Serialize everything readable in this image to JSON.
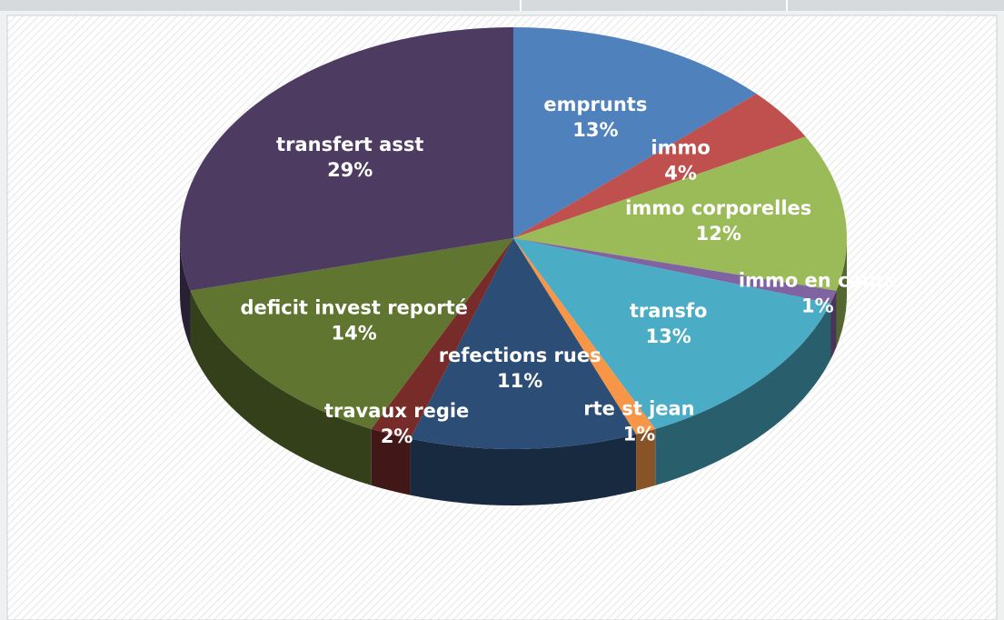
{
  "chart_data": {
    "type": "pie",
    "categories": [
      "emprunts",
      "immo",
      "immo corporelles",
      "immo en cours",
      "transfo",
      "rte st jean",
      "refections rues",
      "travaux regie",
      "deficit invest reporté",
      "transfert asst"
    ],
    "values": [
      13,
      4,
      12,
      1,
      13,
      1,
      11,
      2,
      14,
      29
    ],
    "value_labels": [
      "13%",
      "4%",
      "12%",
      "1%",
      "13%",
      "1%",
      "11%",
      "2%",
      "14%",
      "29%"
    ],
    "colors": [
      "#4f81bd",
      "#c0504d",
      "#9bbb59",
      "#8064a2",
      "#4bacc6",
      "#f79646",
      "#2c4d75",
      "#772c2a",
      "#5f7530",
      "#4d3b62"
    ]
  }
}
